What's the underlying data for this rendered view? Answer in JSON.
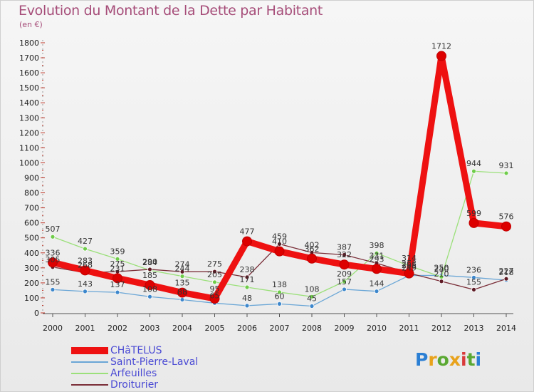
{
  "title": "Evolution du Montant de la Dette par Habitant",
  "unit": "(en €)",
  "brand": "Proxiti",
  "brand_colors": [
    "#2b7fd4",
    "#e8a21b",
    "#5aa832",
    "#e8a21b",
    "#d93a3a",
    "#5aa832",
    "#2b7fd4"
  ],
  "chart_data": {
    "type": "line",
    "x": [
      "2000",
      "2001",
      "2002",
      "2003",
      "2004",
      "2005",
      "2006",
      "2007",
      "2008",
      "2009",
      "2010",
      "2011",
      "2012",
      "2013",
      "2014"
    ],
    "ylim": [
      0,
      1800
    ],
    "yticks": [
      0,
      100,
      200,
      300,
      400,
      500,
      600,
      700,
      800,
      900,
      1000,
      1100,
      1200,
      1300,
      1400,
      1500,
      1600,
      1700,
      1800
    ],
    "grid": false,
    "legend_position": "bottom-left",
    "series": [
      {
        "name": "CHâTELUS",
        "color": "#ee1111",
        "dot": "#dd0000",
        "width": 9,
        "r": 6.5,
        "values": [
          336,
          283,
          231,
          185,
          135,
          95,
          477,
          410,
          362,
          322,
          293,
          263,
          1712,
          599,
          576
        ]
      },
      {
        "name": "Saint-Pierre-Laval",
        "color": "#6aa6d6",
        "dot": "#3d87cc",
        "width": 1.3,
        "r": 3,
        "values": [
          155,
          143,
          137,
          108,
          88,
          65,
          48,
          60,
          45,
          157,
          144,
          249,
          250,
          236,
          218
        ]
      },
      {
        "name": "Arfeuilles",
        "color": "#9be07a",
        "dot": "#6fcc4a",
        "width": 1.3,
        "r": 3,
        "values": [
          507,
          427,
          359,
          284,
          244,
          205,
          171,
          138,
          108,
          209,
          398,
          314,
          240,
          944,
          931
        ]
      },
      {
        "name": "Droiturier",
        "color": "#7a2e38",
        "dot": "#5e1a24",
        "width": 1.3,
        "r": 3,
        "values": [
          305,
          268,
          275,
          290,
          274,
          275,
          238,
          459,
          402,
          387,
          331,
          265,
          210,
          155,
          227
        ]
      }
    ]
  }
}
